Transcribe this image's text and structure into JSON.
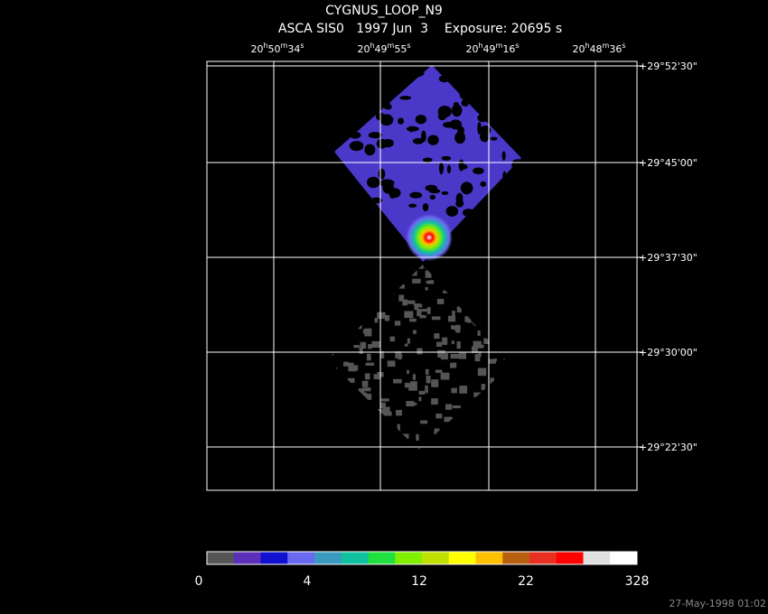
{
  "header": {
    "title": "CYGNUS_LOOP_N9",
    "subtitle": "ASCA SIS0   1997 Jun  3    Exposure: 20695 s"
  },
  "ra_labels": [
    [
      "20",
      "h",
      "50",
      "m",
      "34",
      "s"
    ],
    [
      "20",
      "h",
      "49",
      "m",
      "55",
      "s"
    ],
    [
      "20",
      "h",
      "49",
      "m",
      "16",
      "s"
    ],
    [
      "20",
      "h",
      "48",
      "m",
      "36",
      "s"
    ]
  ],
  "dec_labels": [
    "+29°52'30\"",
    "+29°45'00\"",
    "+29°37'30\"",
    "+29°30'00\"",
    "+29°22'30\""
  ],
  "colorbar": {
    "colors": [
      "#555555",
      "#5b2fb8",
      "#1010d0",
      "#6a6af0",
      "#3a9ac0",
      "#10c0a0",
      "#20e040",
      "#80f000",
      "#c0e000",
      "#ffff00",
      "#ffc000",
      "#b86010",
      "#e83020",
      "#ff0000",
      "#e0e0e0",
      "#ffffff"
    ],
    "labels": [
      "0",
      "4",
      "12",
      "22",
      "328"
    ]
  },
  "footer": "27-May-1998 01:02"
}
